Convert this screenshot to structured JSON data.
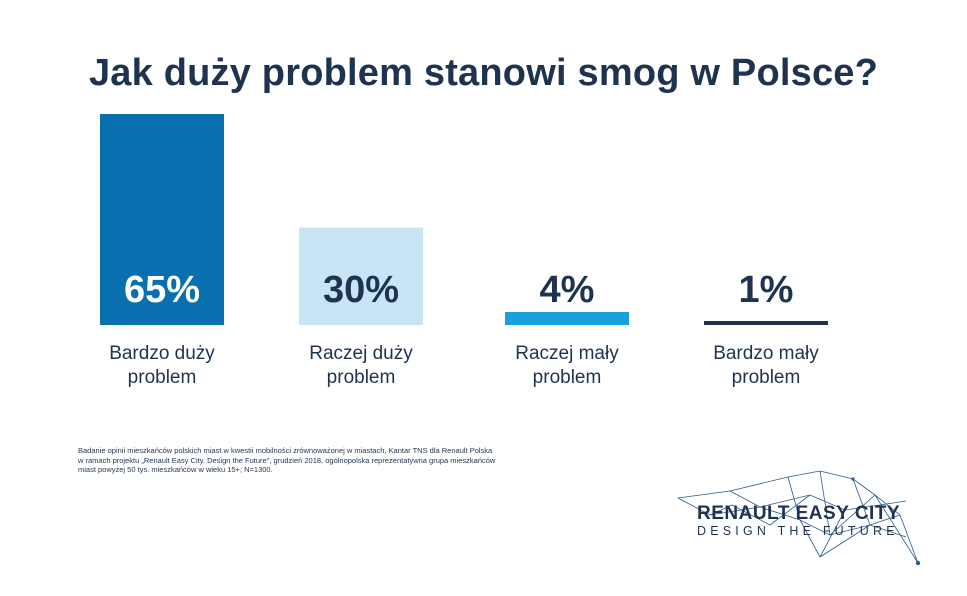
{
  "title": "Jak duży problem stanowi smog w Polsce?",
  "chart_data": {
    "type": "bar",
    "categories": [
      "Bardzo duży problem",
      "Raczej duży problem",
      "Raczej mały problem",
      "Bardzo mały problem"
    ],
    "category_lines": [
      [
        "Bardzo duży",
        "problem"
      ],
      [
        "Raczej duży",
        "problem"
      ],
      [
        "Raczej mały",
        "problem"
      ],
      [
        "Bardzo mały",
        "problem"
      ]
    ],
    "values": [
      65,
      30,
      4,
      1
    ],
    "data_labels": [
      "65%",
      "30%",
      "4%",
      "1%"
    ],
    "colors": [
      "#0a6fae",
      "#c8e5f5",
      "#1a9fdc",
      "#1f3350"
    ],
    "label_colors": [
      "#ffffff",
      "#1f3350",
      "#1f3350",
      "#1f3350"
    ],
    "ylim": [
      0,
      65
    ],
    "grid": false,
    "legend": "none"
  },
  "source": {
    "lines": [
      "Badanie opinii mieszkańców polskich miast w kwestii mobilności zrównoważonej w miastach, Kantar TNS dla Renault Polska",
      "w ramach projektu „Renault Easy City. Design the Future\", grudzień 2018, ogólnopolska reprezentatywna grupa mieszkańców",
      "miast powyżej 50 tys. mieszkańców w wieku 15+; N=1300."
    ]
  },
  "logo": {
    "name": "RENAULT EASY CITY",
    "tagline": "DESIGN THE FUTURE",
    "line_color": "#2c5b8a"
  }
}
